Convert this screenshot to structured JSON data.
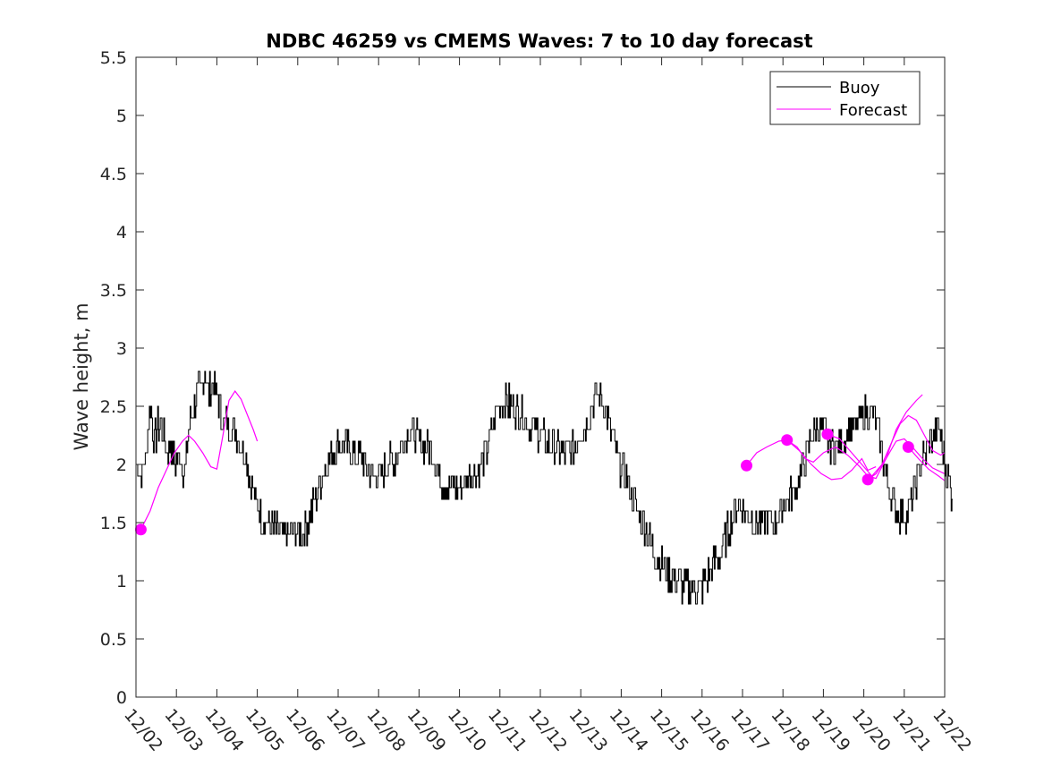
{
  "chart_data": {
    "type": "line",
    "title": "NDBC 46259 vs CMEMS Waves: 7 to 10 day forecast",
    "xlabel": "",
    "ylabel": "Wave height, m",
    "xlim": [
      0,
      20
    ],
    "ylim": [
      0,
      5.5
    ],
    "x_unit": "days since 12/02",
    "x_tick_values": [
      0,
      1,
      2,
      3,
      4,
      5,
      6,
      7,
      8,
      9,
      10,
      11,
      12,
      13,
      14,
      15,
      16,
      17,
      18,
      19,
      20
    ],
    "x_tick_labels": [
      "12/02",
      "12/03",
      "12/04",
      "12/05",
      "12/06",
      "12/07",
      "12/08",
      "12/09",
      "12/10",
      "12/11",
      "12/12",
      "12/13",
      "12/14",
      "12/15",
      "12/16",
      "12/17",
      "12/18",
      "12/19",
      "12/20",
      "12/21",
      "12/22"
    ],
    "y_tick_values": [
      0,
      0.5,
      1,
      1.5,
      2,
      2.5,
      3,
      3.5,
      4,
      4.5,
      5,
      5.5
    ],
    "y_tick_labels": [
      "0",
      "0.5",
      "1",
      "1.5",
      "2",
      "2.5",
      "3",
      "3.5",
      "4",
      "4.5",
      "5",
      "5.5"
    ],
    "legend": {
      "position": "top-right",
      "entries": [
        {
          "label": "Buoy",
          "color": "#000000"
        },
        {
          "label": "Forecast",
          "color": "#ff00ff"
        }
      ]
    },
    "buoy": {
      "name": "Buoy",
      "color": "#000000",
      "points": [
        [
          0,
          2.0
        ],
        [
          0.15,
          1.9
        ],
        [
          0.25,
          2.1
        ],
        [
          0.35,
          2.5
        ],
        [
          0.45,
          2.2
        ],
        [
          0.6,
          2.4
        ],
        [
          0.75,
          2.1
        ],
        [
          0.85,
          2.2
        ],
        [
          0.95,
          2.0
        ],
        [
          1.1,
          2.1
        ],
        [
          1.2,
          1.9
        ],
        [
          1.3,
          2.3
        ],
        [
          1.4,
          2.5
        ],
        [
          1.5,
          2.6
        ],
        [
          1.6,
          2.65
        ],
        [
          1.7,
          2.8
        ],
        [
          1.8,
          2.6
        ],
        [
          1.9,
          2.7
        ],
        [
          2.0,
          2.6
        ],
        [
          2.1,
          2.4
        ],
        [
          2.25,
          2.35
        ],
        [
          2.4,
          2.3
        ],
        [
          2.55,
          2.2
        ],
        [
          2.7,
          2.1
        ],
        [
          2.8,
          1.9
        ],
        [
          2.95,
          1.7
        ],
        [
          3.05,
          1.6
        ],
        [
          3.2,
          1.5
        ],
        [
          3.4,
          1.45
        ],
        [
          3.6,
          1.4
        ],
        [
          3.8,
          1.4
        ],
        [
          4.0,
          1.4
        ],
        [
          4.2,
          1.45
        ],
        [
          4.35,
          1.6
        ],
        [
          4.5,
          1.8
        ],
        [
          4.65,
          1.95
        ],
        [
          4.8,
          2.05
        ],
        [
          5.0,
          2.2
        ],
        [
          5.2,
          2.15
        ],
        [
          5.4,
          2.1
        ],
        [
          5.6,
          2.05
        ],
        [
          5.8,
          1.9
        ],
        [
          6.0,
          1.9
        ],
        [
          6.2,
          2.0
        ],
        [
          6.4,
          2.05
        ],
        [
          6.6,
          2.2
        ],
        [
          6.75,
          2.3
        ],
        [
          6.9,
          2.25
        ],
        [
          7.05,
          2.2
        ],
        [
          7.2,
          2.15
        ],
        [
          7.35,
          2.1
        ],
        [
          7.5,
          1.9
        ],
        [
          7.7,
          1.8
        ],
        [
          7.9,
          1.8
        ],
        [
          8.1,
          1.85
        ],
        [
          8.3,
          1.9
        ],
        [
          8.5,
          1.95
        ],
        [
          8.65,
          2.1
        ],
        [
          8.8,
          2.3
        ],
        [
          8.95,
          2.5
        ],
        [
          9.1,
          2.55
        ],
        [
          9.3,
          2.5
        ],
        [
          9.5,
          2.45
        ],
        [
          9.7,
          2.35
        ],
        [
          9.9,
          2.3
        ],
        [
          10.1,
          2.2
        ],
        [
          10.3,
          2.15
        ],
        [
          10.45,
          2.1
        ],
        [
          10.6,
          2.1
        ],
        [
          10.75,
          2.1
        ],
        [
          10.9,
          2.2
        ],
        [
          11.05,
          2.3
        ],
        [
          11.2,
          2.45
        ],
        [
          11.35,
          2.6
        ],
        [
          11.5,
          2.55
        ],
        [
          11.65,
          2.4
        ],
        [
          11.8,
          2.2
        ],
        [
          11.95,
          2.0
        ],
        [
          12.1,
          1.9
        ],
        [
          12.25,
          1.75
        ],
        [
          12.4,
          1.6
        ],
        [
          12.55,
          1.5
        ],
        [
          12.7,
          1.35
        ],
        [
          12.85,
          1.2
        ],
        [
          13.0,
          1.15
        ],
        [
          13.2,
          1.05
        ],
        [
          13.4,
          0.98
        ],
        [
          13.6,
          0.95
        ],
        [
          13.8,
          0.93
        ],
        [
          14.0,
          0.95
        ],
        [
          14.15,
          1.05
        ],
        [
          14.3,
          1.15
        ],
        [
          14.45,
          1.25
        ],
        [
          14.6,
          1.4
        ],
        [
          14.75,
          1.55
        ],
        [
          14.9,
          1.65
        ],
        [
          15.05,
          1.6
        ],
        [
          15.2,
          1.55
        ],
        [
          15.35,
          1.5
        ],
        [
          15.5,
          1.5
        ],
        [
          15.65,
          1.5
        ],
        [
          15.8,
          1.5
        ],
        [
          15.95,
          1.6
        ],
        [
          16.1,
          1.7
        ],
        [
          16.25,
          1.75
        ],
        [
          16.4,
          1.9
        ],
        [
          16.55,
          2.05
        ],
        [
          16.7,
          2.25
        ],
        [
          16.85,
          2.3
        ],
        [
          17.0,
          2.3
        ],
        [
          17.15,
          2.2
        ],
        [
          17.3,
          2.15
        ],
        [
          17.45,
          2.2
        ],
        [
          17.6,
          2.3
        ],
        [
          17.75,
          2.3
        ],
        [
          17.9,
          2.4
        ],
        [
          18.05,
          2.45
        ],
        [
          18.2,
          2.45
        ],
        [
          18.35,
          2.3
        ],
        [
          18.5,
          2.0
        ],
        [
          18.65,
          1.75
        ],
        [
          18.8,
          1.6
        ],
        [
          18.95,
          1.55
        ],
        [
          19.1,
          1.6
        ],
        [
          19.25,
          1.8
        ],
        [
          19.4,
          2.0
        ],
        [
          19.55,
          2.15
        ],
        [
          19.7,
          2.2
        ],
        [
          19.85,
          2.3
        ],
        [
          20.0,
          2.0
        ],
        [
          20.1,
          1.85
        ],
        [
          20.2,
          1.7
        ]
      ]
    },
    "forecasts": [
      {
        "name": "Forecast",
        "color": "#ff00ff",
        "start": [
          0.12,
          1.44
        ],
        "points": [
          [
            0.12,
            1.44
          ],
          [
            0.35,
            1.6
          ],
          [
            0.55,
            1.8
          ],
          [
            0.75,
            1.95
          ],
          [
            0.95,
            2.1
          ],
          [
            1.15,
            2.2
          ],
          [
            1.3,
            2.25
          ],
          [
            1.45,
            2.2
          ],
          [
            1.65,
            2.1
          ],
          [
            1.85,
            1.98
          ],
          [
            2.0,
            1.96
          ],
          [
            2.15,
            2.25
          ],
          [
            2.3,
            2.55
          ],
          [
            2.45,
            2.63
          ],
          [
            2.6,
            2.56
          ],
          [
            2.75,
            2.43
          ],
          [
            2.9,
            2.3
          ],
          [
            3.0,
            2.2
          ]
        ]
      },
      {
        "name": "Forecast",
        "color": "#ff00ff",
        "start": [
          15.1,
          1.99
        ],
        "points": [
          [
            15.1,
            1.99
          ],
          [
            15.35,
            2.1
          ],
          [
            15.6,
            2.15
          ],
          [
            15.9,
            2.2
          ],
          [
            16.1,
            2.21
          ],
          [
            16.4,
            2.12
          ],
          [
            16.7,
            2.0
          ],
          [
            16.95,
            1.92
          ],
          [
            17.2,
            1.87
          ],
          [
            17.45,
            1.88
          ],
          [
            17.7,
            1.95
          ],
          [
            17.95,
            2.05
          ],
          [
            18.1,
            1.95
          ],
          [
            18.3,
            1.98
          ]
        ]
      },
      {
        "name": "Forecast",
        "color": "#ff00ff",
        "start": [
          16.1,
          2.21
        ],
        "points": [
          [
            16.1,
            2.21
          ],
          [
            16.35,
            2.15
          ],
          [
            16.55,
            2.05
          ],
          [
            16.75,
            2.02
          ],
          [
            17.0,
            2.1
          ],
          [
            17.3,
            2.15
          ],
          [
            17.6,
            2.08
          ],
          [
            17.9,
            1.98
          ],
          [
            18.1,
            1.9
          ],
          [
            18.3,
            1.88
          ],
          [
            18.55,
            2.05
          ],
          [
            18.8,
            2.3
          ],
          [
            19.05,
            2.45
          ],
          [
            19.3,
            2.55
          ],
          [
            19.45,
            2.6
          ]
        ]
      },
      {
        "name": "Forecast",
        "color": "#ff00ff",
        "start": [
          17.1,
          2.26
        ],
        "points": [
          [
            17.1,
            2.26
          ],
          [
            17.4,
            2.22
          ],
          [
            17.7,
            2.1
          ],
          [
            17.95,
            2.0
          ],
          [
            18.2,
            1.9
          ],
          [
            18.45,
            2.0
          ],
          [
            18.7,
            2.2
          ],
          [
            18.9,
            2.35
          ],
          [
            19.1,
            2.42
          ],
          [
            19.3,
            2.38
          ],
          [
            19.5,
            2.25
          ],
          [
            19.7,
            2.12
          ],
          [
            19.9,
            2.08
          ],
          [
            20.0,
            2.1
          ]
        ]
      },
      {
        "name": "Forecast",
        "color": "#ff00ff",
        "start": [
          18.1,
          1.87
        ],
        "points": [
          [
            18.1,
            1.87
          ],
          [
            18.3,
            1.92
          ],
          [
            18.55,
            2.05
          ],
          [
            18.8,
            2.2
          ],
          [
            19.0,
            2.22
          ],
          [
            19.2,
            2.15
          ],
          [
            19.45,
            2.05
          ],
          [
            19.7,
            1.97
          ],
          [
            20.0,
            1.92
          ]
        ]
      },
      {
        "name": "Forecast",
        "color": "#ff00ff",
        "start": [
          19.1,
          2.15
        ],
        "points": [
          [
            19.1,
            2.15
          ],
          [
            19.35,
            2.05
          ],
          [
            19.6,
            1.96
          ],
          [
            19.85,
            1.9
          ],
          [
            20.0,
            1.86
          ]
        ]
      }
    ]
  }
}
